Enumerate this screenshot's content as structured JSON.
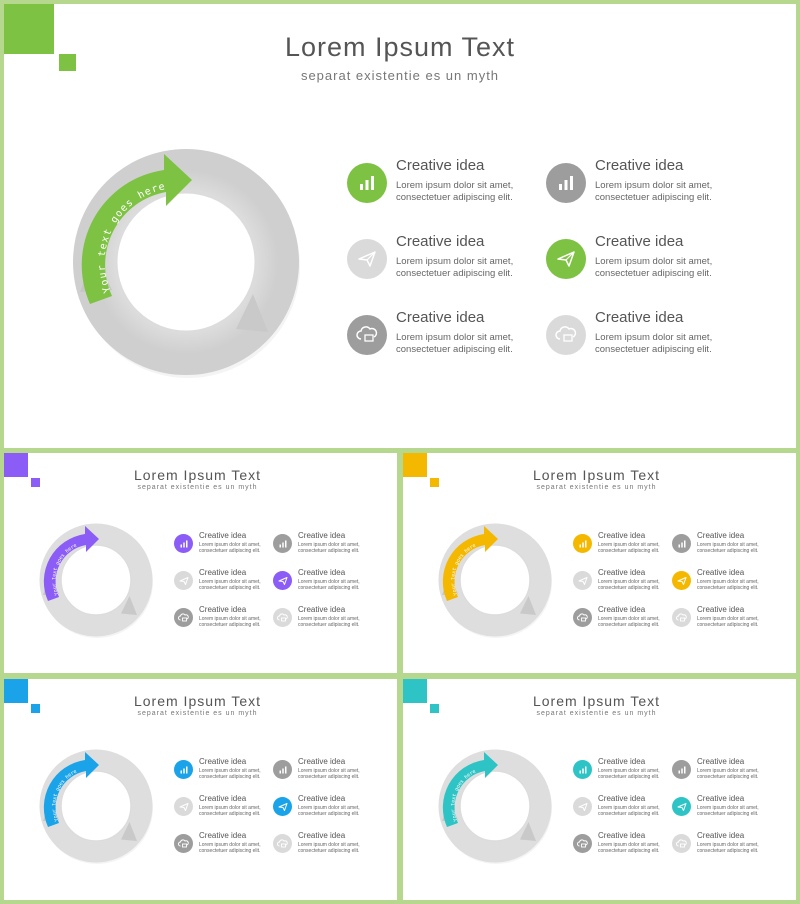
{
  "slides": [
    {
      "title": "Lorem Ipsum Text",
      "subtitle": "separat existentie es un myth",
      "arrow_text": "Your text goes here",
      "accent": "#7dc242",
      "items": [
        {
          "heading": "Creative idea",
          "line1": "Lorem ipsum dolor sit amet,",
          "line2": "consectetuer adipiscing elit.",
          "icon": "bar-chart-icon",
          "icon_color": "#7dc242"
        },
        {
          "heading": "Creative idea",
          "line1": "Lorem ipsum dolor sit amet,",
          "line2": "consectetuer adipiscing elit.",
          "icon": "bar-chart-icon",
          "icon_color": "#9d9d9d"
        },
        {
          "heading": "Creative idea",
          "line1": "Lorem ipsum dolor sit amet,",
          "line2": "consectetuer adipiscing elit.",
          "icon": "paper-plane-icon",
          "icon_color": "#dadada"
        },
        {
          "heading": "Creative idea",
          "line1": "Lorem ipsum dolor sit amet,",
          "line2": "consectetuer adipiscing elit.",
          "icon": "paper-plane-icon",
          "icon_color": "#7dc242"
        },
        {
          "heading": "Creative idea",
          "line1": "Lorem ipsum dolor sit amet,",
          "line2": "consectetuer adipiscing elit.",
          "icon": "cloud-icon",
          "icon_color": "#9d9d9d"
        },
        {
          "heading": "Creative idea",
          "line1": "Lorem ipsum dolor sit amet,",
          "line2": "consectetuer adipiscing elit.",
          "icon": "cloud-icon",
          "icon_color": "#dadada"
        }
      ]
    },
    {
      "title": "Lorem Ipsum Text",
      "subtitle": "separat existentie es un myth",
      "arrow_text": "Your text goes here",
      "accent": "#8b5cf6",
      "items": [
        {
          "heading": "Creative idea",
          "line1": "Lorem ipsum dolor sit amet,",
          "line2": "consectetuer adipiscing elit.",
          "icon": "bar-chart-icon",
          "icon_color": "#8b5cf6"
        },
        {
          "heading": "Creative idea",
          "line1": "Lorem ipsum dolor sit amet,",
          "line2": "consectetuer adipiscing elit.",
          "icon": "bar-chart-icon",
          "icon_color": "#9d9d9d"
        },
        {
          "heading": "Creative idea",
          "line1": "Lorem ipsum dolor sit amet,",
          "line2": "consectetuer adipiscing elit.",
          "icon": "paper-plane-icon",
          "icon_color": "#dadada"
        },
        {
          "heading": "Creative idea",
          "line1": "Lorem ipsum dolor sit amet,",
          "line2": "consectetuer adipiscing elit.",
          "icon": "paper-plane-icon",
          "icon_color": "#8b5cf6"
        },
        {
          "heading": "Creative idea",
          "line1": "Lorem ipsum dolor sit amet,",
          "line2": "consectetuer adipiscing elit.",
          "icon": "cloud-icon",
          "icon_color": "#9d9d9d"
        },
        {
          "heading": "Creative idea",
          "line1": "Lorem ipsum dolor sit amet,",
          "line2": "consectetuer adipiscing elit.",
          "icon": "cloud-icon",
          "icon_color": "#dadada"
        }
      ]
    },
    {
      "title": "Lorem Ipsum Text",
      "subtitle": "separat existentie es un myth",
      "arrow_text": "Your text goes here",
      "accent": "#f5b800",
      "items": [
        {
          "heading": "Creative idea",
          "line1": "Lorem ipsum dolor sit amet,",
          "line2": "consectetuer adipiscing elit.",
          "icon": "bar-chart-icon",
          "icon_color": "#f5b800"
        },
        {
          "heading": "Creative idea",
          "line1": "Lorem ipsum dolor sit amet,",
          "line2": "consectetuer adipiscing elit.",
          "icon": "bar-chart-icon",
          "icon_color": "#9d9d9d"
        },
        {
          "heading": "Creative idea",
          "line1": "Lorem ipsum dolor sit amet,",
          "line2": "consectetuer adipiscing elit.",
          "icon": "paper-plane-icon",
          "icon_color": "#dadada"
        },
        {
          "heading": "Creative idea",
          "line1": "Lorem ipsum dolor sit amet,",
          "line2": "consectetuer adipiscing elit.",
          "icon": "paper-plane-icon",
          "icon_color": "#f5b800"
        },
        {
          "heading": "Creative idea",
          "line1": "Lorem ipsum dolor sit amet,",
          "line2": "consectetuer adipiscing elit.",
          "icon": "cloud-icon",
          "icon_color": "#9d9d9d"
        },
        {
          "heading": "Creative idea",
          "line1": "Lorem ipsum dolor sit amet,",
          "line2": "consectetuer adipiscing elit.",
          "icon": "cloud-icon",
          "icon_color": "#dadada"
        }
      ]
    },
    {
      "title": "Lorem Ipsum Text",
      "subtitle": "separat existentie es un myth",
      "arrow_text": "Your text goes here",
      "accent": "#1aa3e8",
      "items": [
        {
          "heading": "Creative idea",
          "line1": "Lorem ipsum dolor sit amet,",
          "line2": "consectetuer adipiscing elit.",
          "icon": "bar-chart-icon",
          "icon_color": "#1aa3e8"
        },
        {
          "heading": "Creative idea",
          "line1": "Lorem ipsum dolor sit amet,",
          "line2": "consectetuer adipiscing elit.",
          "icon": "bar-chart-icon",
          "icon_color": "#9d9d9d"
        },
        {
          "heading": "Creative idea",
          "line1": "Lorem ipsum dolor sit amet,",
          "line2": "consectetuer adipiscing elit.",
          "icon": "paper-plane-icon",
          "icon_color": "#dadada"
        },
        {
          "heading": "Creative idea",
          "line1": "Lorem ipsum dolor sit amet,",
          "line2": "consectetuer adipiscing elit.",
          "icon": "paper-plane-icon",
          "icon_color": "#1aa3e8"
        },
        {
          "heading": "Creative idea",
          "line1": "Lorem ipsum dolor sit amet,",
          "line2": "consectetuer adipiscing elit.",
          "icon": "cloud-icon",
          "icon_color": "#9d9d9d"
        },
        {
          "heading": "Creative idea",
          "line1": "Lorem ipsum dolor sit amet,",
          "line2": "consectetuer adipiscing elit.",
          "icon": "cloud-icon",
          "icon_color": "#dadada"
        }
      ]
    },
    {
      "title": "Lorem Ipsum Text",
      "subtitle": "separat existentie es un myth",
      "arrow_text": "Your text goes here",
      "accent": "#2ec4c6",
      "items": [
        {
          "heading": "Creative idea",
          "line1": "Lorem ipsum dolor sit amet,",
          "line2": "consectetuer adipiscing elit.",
          "icon": "bar-chart-icon",
          "icon_color": "#2ec4c6"
        },
        {
          "heading": "Creative idea",
          "line1": "Lorem ipsum dolor sit amet,",
          "line2": "consectetuer adipiscing elit.",
          "icon": "bar-chart-icon",
          "icon_color": "#9d9d9d"
        },
        {
          "heading": "Creative idea",
          "line1": "Lorem ipsum dolor sit amet,",
          "line2": "consectetuer adipiscing elit.",
          "icon": "paper-plane-icon",
          "icon_color": "#dadada"
        },
        {
          "heading": "Creative idea",
          "line1": "Lorem ipsum dolor sit amet,",
          "line2": "consectetuer adipiscing elit.",
          "icon": "paper-plane-icon",
          "icon_color": "#2ec4c6"
        },
        {
          "heading": "Creative idea",
          "line1": "Lorem ipsum dolor sit amet,",
          "line2": "consectetuer adipiscing elit.",
          "icon": "cloud-icon",
          "icon_color": "#9d9d9d"
        },
        {
          "heading": "Creative idea",
          "line1": "Lorem ipsum dolor sit amet,",
          "line2": "consectetuer adipiscing elit.",
          "icon": "cloud-icon",
          "icon_color": "#dadada"
        }
      ]
    }
  ]
}
